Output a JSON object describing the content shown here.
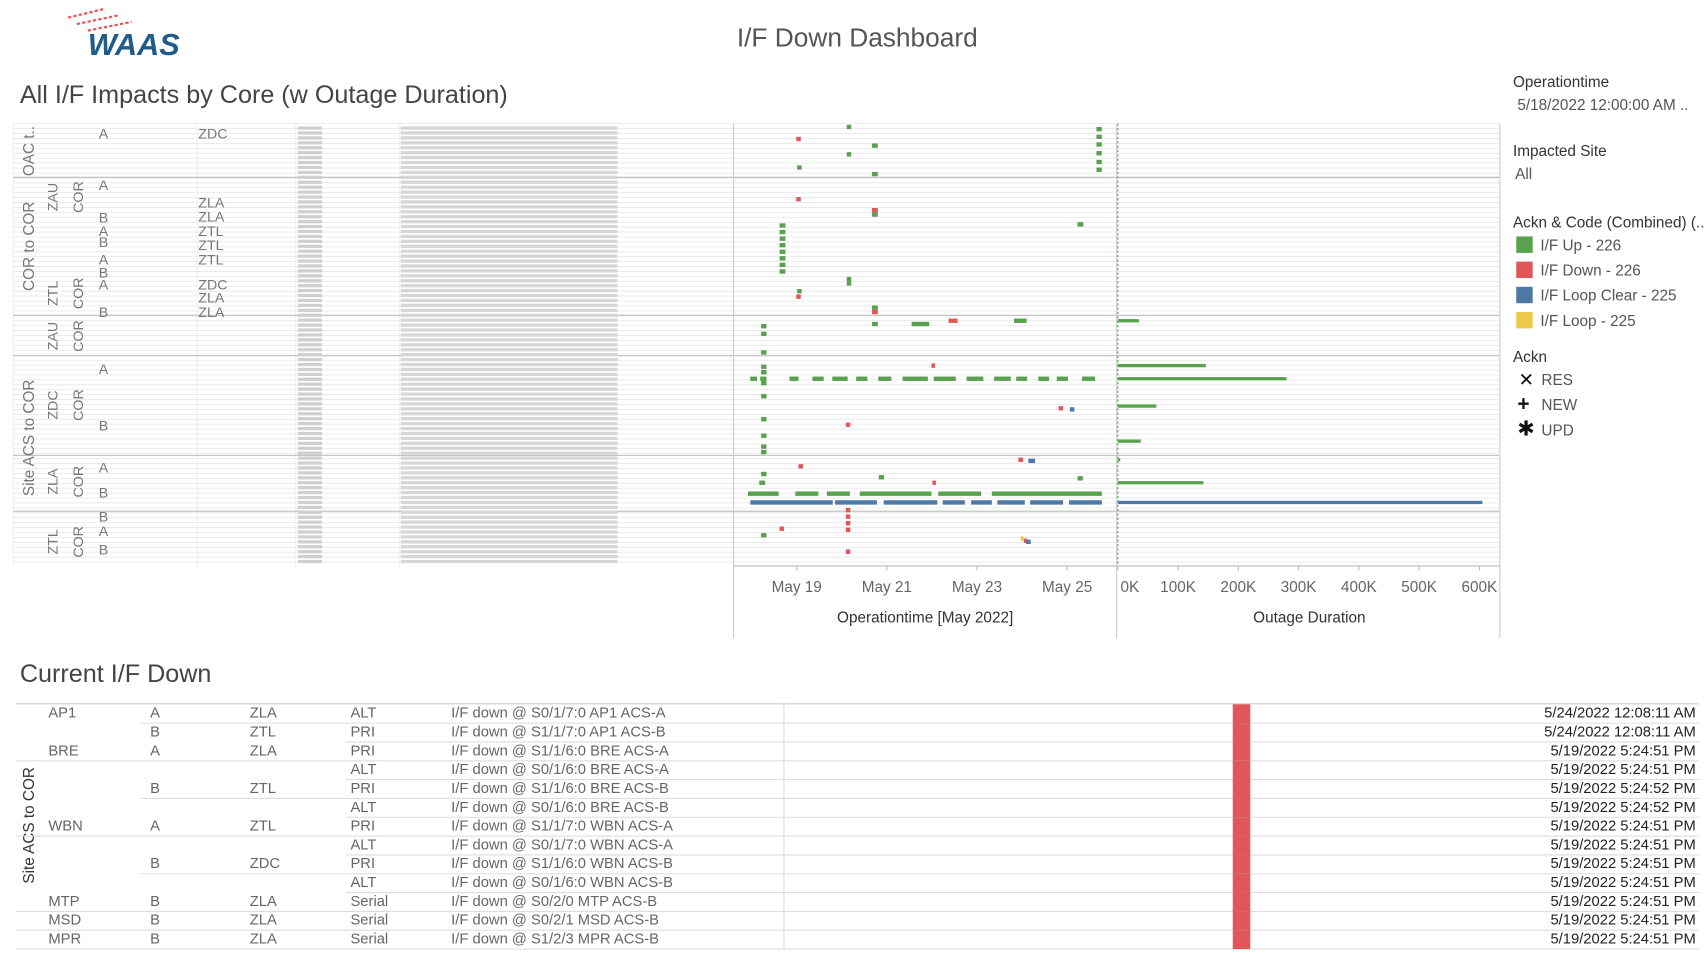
{
  "header": {
    "logo": "WAAS",
    "title": "I/F Down Dashboard"
  },
  "chart_data": [
    {
      "type": "gantt",
      "title": "All I/F Impacts by Core (w Outage Duration)",
      "xlabel": "Operationtime [May 2022]",
      "xlim": [
        17.6,
        26.1
      ],
      "xticks": [
        {
          "value": 19,
          "label": "May 19"
        },
        {
          "value": 21,
          "label": "May 21"
        },
        {
          "value": 23,
          "label": "May 23"
        },
        {
          "value": 25,
          "label": "May 25"
        }
      ],
      "row_headers": {
        "groups": [
          "OAC t..",
          "COR to COR",
          "Site ACS to COR"
        ],
        "cores": [
          "ZAU",
          "ZTL",
          "ZAU",
          "ZDC",
          "ZLA",
          "ZTL"
        ],
        "core_types": [
          "COR",
          "COR",
          "COR",
          "COR",
          "COR",
          "COR"
        ],
        "sides": [
          "A",
          "A",
          "B",
          "A",
          "B",
          "A",
          "B",
          "A",
          "B",
          "A",
          "B",
          "A",
          "B",
          "B",
          "A",
          "B"
        ],
        "sites": [
          "ZDC",
          "ZLA",
          "ZLA",
          "ZTL",
          "ZTL",
          "ZTL",
          "ZDC",
          "ZLA",
          "ZLA"
        ]
      },
      "series": [
        {
          "name": "I/F Up - 226",
          "color": "#59a14f",
          "segments": [
            [
              25.65,
              25.77
            ],
            [
              25.65,
              25.77
            ],
            [
              25.65,
              25.77
            ],
            [
              25.65,
              25.77
            ],
            [
              25.65,
              25.77
            ],
            [
              25.65,
              25.77
            ],
            [
              20.11,
              20.21
            ],
            [
              20.11,
              20.21
            ],
            [
              20.11,
              20.21
            ],
            [
              20.11,
              20.21
            ],
            [
              20.67,
              20.8
            ],
            [
              20.67,
              20.8
            ],
            [
              20.67,
              20.8
            ],
            [
              20.67,
              20.8
            ],
            [
              20.67,
              20.8
            ],
            [
              19.01,
              19.11
            ],
            [
              19.01,
              19.11
            ],
            [
              18.62,
              18.75
            ],
            [
              18.62,
              18.75
            ],
            [
              18.62,
              18.75
            ],
            [
              18.62,
              18.75
            ],
            [
              18.62,
              18.75
            ],
            [
              18.62,
              18.75
            ],
            [
              18.62,
              18.75
            ],
            [
              18.62,
              18.75
            ],
            [
              25.23,
              25.36
            ],
            [
              21.55,
              21.94
            ],
            [
              23.82,
              24.1
            ],
            [
              18.21,
              18.33
            ],
            [
              18.21,
              18.33
            ],
            [
              18.21,
              18.33
            ],
            [
              18.21,
              18.33
            ],
            [
              18.21,
              18.33
            ],
            [
              18.21,
              18.33
            ],
            [
              18.21,
              18.33
            ],
            [
              18.21,
              18.33
            ],
            [
              18.21,
              18.33
            ],
            [
              18.21,
              18.33
            ],
            [
              18.21,
              18.33
            ],
            [
              18.21,
              18.33
            ],
            [
              18.21,
              18.33
            ],
            [
              17.97,
              18.12
            ],
            [
              18.19,
              18.33
            ],
            [
              18.84,
              19.04
            ],
            [
              19.35,
              19.6
            ],
            [
              19.79,
              20.13
            ],
            [
              20.32,
              20.57
            ],
            [
              20.81,
              21.1
            ],
            [
              21.35,
              21.91
            ],
            [
              22.04,
              22.53
            ],
            [
              22.77,
              23.14
            ],
            [
              23.38,
              23.75
            ],
            [
              23.87,
              24.11
            ],
            [
              24.36,
              24.6
            ],
            [
              24.77,
              25.02
            ],
            [
              25.33,
              25.62
            ],
            [
              17.92,
              18.6
            ],
            [
              18.97,
              19.48
            ],
            [
              19.67,
              20.18
            ],
            [
              20.4,
              21.99
            ],
            [
              22.14,
              23.09
            ],
            [
              23.33,
              25.77
            ],
            [
              18.17,
              18.3
            ],
            [
              20.82,
              20.94
            ],
            [
              25.23,
              25.35
            ]
          ]
        },
        {
          "name": "I/F Down - 226",
          "color": "#e15759",
          "segments": [
            [
              18.99,
              19.09
            ],
            [
              18.99,
              19.09
            ],
            [
              18.99,
              19.09
            ],
            [
              20.67,
              20.8
            ],
            [
              20.67,
              20.8
            ],
            [
              22.37,
              22.57
            ],
            [
              21.99,
              22.07
            ],
            [
              20.09,
              20.19
            ],
            [
              24.81,
              24.91
            ],
            [
              19.04,
              19.14
            ],
            [
              20.09,
              20.19
            ],
            [
              20.09,
              20.19
            ],
            [
              20.09,
              20.19
            ],
            [
              20.09,
              20.19
            ],
            [
              20.09,
              20.19
            ],
            [
              18.62,
              18.72
            ],
            [
              23.92,
              24.02
            ],
            [
              24.04,
              24.11
            ],
            [
              22.01,
              22.09
            ]
          ]
        },
        {
          "name": "I/F Loop Clear - 225",
          "color": "#4e79a7",
          "segments": [
            [
              17.97,
              19.8
            ],
            [
              19.85,
              20.78
            ],
            [
              20.93,
              22.12
            ],
            [
              22.24,
              22.73
            ],
            [
              22.87,
              23.33
            ],
            [
              23.45,
              24.06
            ],
            [
              24.18,
              24.91
            ],
            [
              25.04,
              25.77
            ],
            [
              25.06,
              25.16
            ],
            [
              24.14,
              24.29
            ],
            [
              24.09,
              24.19
            ]
          ]
        },
        {
          "name": "I/F Loop - 225",
          "color": "#edc948",
          "segments": [
            [
              23.97,
              24.04
            ]
          ]
        }
      ]
    },
    {
      "type": "bar",
      "xlabel": "Outage Duration",
      "xlim": [
        0,
        634000
      ],
      "xticks": [
        {
          "value": 0,
          "label": "0K"
        },
        {
          "value": 100000,
          "label": "100K"
        },
        {
          "value": 200000,
          "label": "200K"
        },
        {
          "value": 300000,
          "label": "300K"
        },
        {
          "value": 400000,
          "label": "400K"
        },
        {
          "value": 500000,
          "label": "500K"
        },
        {
          "value": 600000,
          "label": "600K"
        }
      ],
      "values": [
        605000,
        280000,
        146000,
        142000,
        64000,
        38000,
        35000,
        4000
      ],
      "colors": [
        "#4e79a7",
        "#59a14f",
        "#59a14f",
        "#59a14f",
        "#59a14f",
        "#59a14f",
        "#59a14f",
        "#59a14f"
      ]
    }
  ],
  "filters": {
    "operationtime": {
      "label": "Operationtime",
      "value": "5/18/2022 12:00:00 AM .."
    },
    "impacted_site": {
      "label": "Impacted Site",
      "value": "All"
    },
    "legend_title": "Ackn & Code (Combined) (..",
    "ackn": {
      "label": "Ackn",
      "items": [
        "RES",
        "NEW",
        "UPD"
      ]
    }
  },
  "table": {
    "title": "Current I/F Down",
    "group": "Site ACS to COR",
    "down_color": "#e15759",
    "rows": [
      [
        "AP1",
        "A",
        "ZLA",
        "ALT",
        "I/F down @ S0/1/7:0 AP1 ACS-A",
        "5/24/2022 12:08:11 AM"
      ],
      [
        null,
        "B",
        "ZTL",
        "PRI",
        "I/F down @ S1/1/7:0 AP1 ACS-B",
        "5/24/2022 12:08:11 AM"
      ],
      [
        "BRE",
        "A",
        "ZLA",
        "PRI",
        "I/F down @ S1/1/6:0 BRE ACS-A",
        "5/19/2022 5:24:51 PM"
      ],
      [
        null,
        null,
        null,
        "ALT",
        "I/F down @ S0/1/6:0 BRE ACS-A",
        "5/19/2022 5:24:51 PM"
      ],
      [
        null,
        "B",
        "ZTL",
        "PRI",
        "I/F down @ S1/1/6:0 BRE ACS-B",
        "5/19/2022 5:24:52 PM"
      ],
      [
        null,
        null,
        null,
        "ALT",
        "I/F down @ S0/1/6:0 BRE ACS-B",
        "5/19/2022 5:24:52 PM"
      ],
      [
        "WBN",
        "A",
        "ZTL",
        "PRI",
        "I/F down @ S1/1/7:0 WBN ACS-A",
        "5/19/2022 5:24:51 PM"
      ],
      [
        null,
        null,
        null,
        "ALT",
        "I/F down @ S0/1/7:0 WBN ACS-A",
        "5/19/2022 5:24:51 PM"
      ],
      [
        null,
        "B",
        "ZDC",
        "PRI",
        "I/F down @ S1/1/6:0 WBN ACS-B",
        "5/19/2022 5:24:51 PM"
      ],
      [
        null,
        null,
        null,
        "ALT",
        "I/F down @ S0/1/6:0 WBN ACS-B",
        "5/19/2022 5:24:51 PM"
      ],
      [
        "MTP",
        "B",
        "ZLA",
        "Serial",
        "I/F down @ S0/2/0 MTP ACS-B",
        "5/19/2022 5:24:51 PM"
      ],
      [
        "MSD",
        "B",
        "ZLA",
        "Serial",
        "I/F down @ S0/2/1 MSD ACS-B",
        "5/19/2022 5:24:51 PM"
      ],
      [
        "MPR",
        "B",
        "ZLA",
        "Serial",
        "I/F down @ S1/2/3 MPR ACS-B",
        "5/19/2022 5:24:51 PM"
      ]
    ]
  }
}
